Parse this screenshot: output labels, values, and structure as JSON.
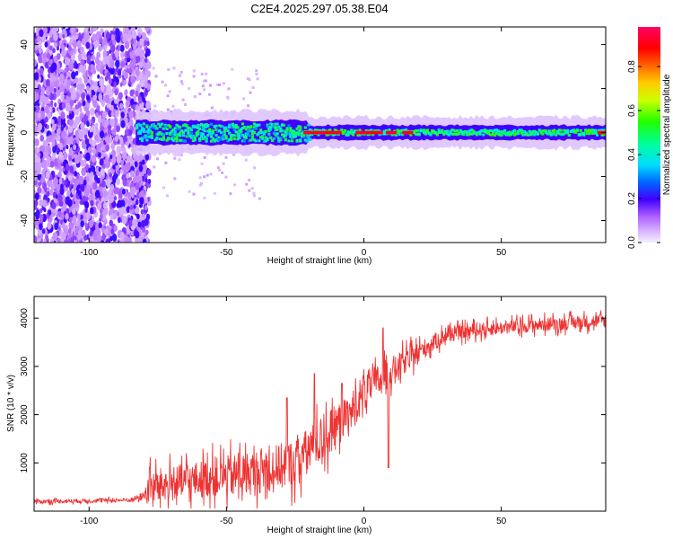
{
  "title": "C2E4.2025.297.05.38.E04",
  "chart_data": [
    {
      "type": "heatmap",
      "name": "spectrogram",
      "xlabel": "Height of straight line (km)",
      "ylabel": "Frequency (Hz)",
      "xlim": [
        -120,
        88
      ],
      "ylim": [
        -50,
        48
      ],
      "xticks": [
        -100,
        -50,
        0,
        50
      ],
      "yticks": [
        -40,
        -20,
        0,
        20,
        40
      ],
      "noise_region_km": [
        -120,
        -78
      ],
      "signal_start_km": -83,
      "signal_peak_segments_km": [
        [
          -22,
          -9
        ],
        [
          -3,
          6
        ],
        [
          8,
          11
        ],
        [
          14,
          17
        ],
        [
          85,
          88
        ]
      ],
      "colorbar": {
        "label": "Normalized spectral amplitude",
        "range": [
          0,
          0.98
        ],
        "ticks": [
          0.0,
          0.2,
          0.4,
          0.6,
          0.8
        ]
      }
    },
    {
      "type": "line",
      "name": "snr",
      "xlabel": "Height of straight line (km)",
      "ylabel": "SNR (10 * v/v)",
      "xlim": [
        -120,
        88
      ],
      "ylim": [
        0,
        4450
      ],
      "xticks": [
        -100,
        -50,
        0,
        50
      ],
      "yticks": [
        1000,
        2000,
        3000,
        4000
      ],
      "color": "#ee3333",
      "envelope": {
        "x": [
          -120,
          -85,
          -80,
          -78,
          -60,
          -40,
          -25,
          -15,
          -5,
          0,
          10,
          20,
          30,
          40,
          60,
          75,
          88
        ],
        "mean": [
          200,
          230,
          320,
          500,
          650,
          800,
          1000,
          1500,
          2000,
          2500,
          2900,
          3300,
          3650,
          3750,
          3850,
          3900,
          3950
        ],
        "spread": [
          60,
          60,
          120,
          500,
          550,
          650,
          700,
          700,
          600,
          550,
          420,
          300,
          220,
          200,
          200,
          200,
          200
        ]
      },
      "spikes": [
        {
          "x": -28,
          "value": 2350
        },
        {
          "x": -18,
          "value": 2850
        },
        {
          "x": -8,
          "value": 2650
        },
        {
          "x": 7,
          "value": 3800
        },
        {
          "x": 9,
          "value": 900
        }
      ]
    }
  ]
}
